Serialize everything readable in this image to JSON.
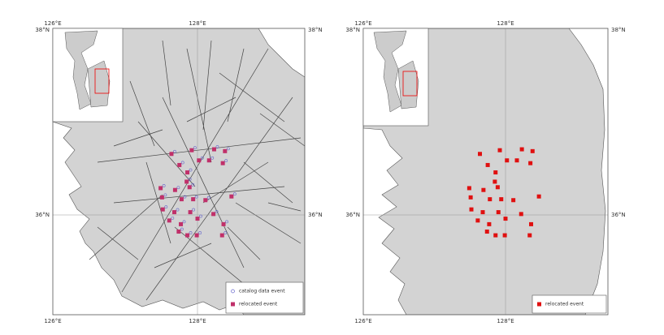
{
  "panels": [
    {
      "lon_labels": [
        "126°E",
        "128°E"
      ],
      "lat_labels": [
        "38°N",
        "36°N"
      ],
      "legend": [
        "catalog data event",
        "relocated event"
      ]
    },
    {
      "lon_labels": [
        "126°E",
        "128°E"
      ],
      "lat_labels": [
        "38°N",
        "36°N"
      ],
      "legend": [
        "relocated event"
      ]
    }
  ],
  "events": [
    [
      127.64,
      36.66
    ],
    [
      127.92,
      36.7
    ],
    [
      128.23,
      36.71
    ],
    [
      128.38,
      36.69
    ],
    [
      127.75,
      36.54
    ],
    [
      128.02,
      36.59
    ],
    [
      128.16,
      36.59
    ],
    [
      128.35,
      36.56
    ],
    [
      127.86,
      36.46
    ],
    [
      127.85,
      36.36
    ],
    [
      127.49,
      36.29
    ],
    [
      127.69,
      36.27
    ],
    [
      127.89,
      36.3
    ],
    [
      127.51,
      36.19
    ],
    [
      127.78,
      36.17
    ],
    [
      127.94,
      36.17
    ],
    [
      128.11,
      36.16
    ],
    [
      128.47,
      36.2
    ],
    [
      127.52,
      36.06
    ],
    [
      127.68,
      36.03
    ],
    [
      127.9,
      36.03
    ],
    [
      128.22,
      36.01
    ],
    [
      127.61,
      35.94
    ],
    [
      127.77,
      35.9
    ],
    [
      128.0,
      35.96
    ],
    [
      128.36,
      35.9
    ],
    [
      127.74,
      35.82
    ],
    [
      127.86,
      35.78
    ],
    [
      127.99,
      35.78
    ],
    [
      128.34,
      35.78
    ]
  ]
}
